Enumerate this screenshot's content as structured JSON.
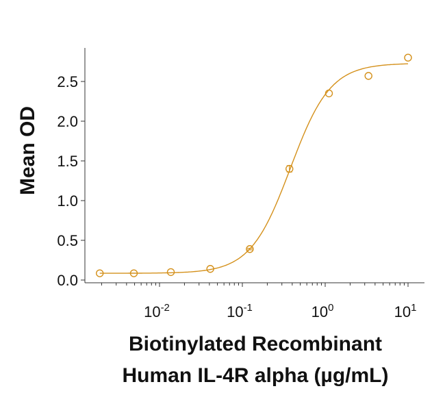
{
  "chart_data": {
    "type": "scatter",
    "xlabel": [
      "Biotinylated Recombinant",
      "Human IL-4R alpha (µg/mL)"
    ],
    "ylabel": "Mean OD",
    "x_scale": "log",
    "xlim": [
      0.0013,
      14
    ],
    "ylim": [
      -0.05,
      2.9
    ],
    "x_ticks": [
      {
        "value": 0.01,
        "base": "10",
        "exp": "-2"
      },
      {
        "value": 0.1,
        "base": "10",
        "exp": "-1"
      },
      {
        "value": 1,
        "base": "10",
        "exp": "0"
      },
      {
        "value": 10,
        "base": "10",
        "exp": "1"
      }
    ],
    "y_ticks": [
      "0.0",
      "0.5",
      "1.0",
      "1.5",
      "2.0",
      "2.5"
    ],
    "grid": false,
    "color": "#d4901a",
    "series": [
      {
        "x": [
          0.0019,
          0.0049,
          0.0137,
          0.041,
          0.123,
          0.37,
          1.11,
          3.33,
          10
        ],
        "y": [
          0.085,
          0.085,
          0.1,
          0.14,
          0.39,
          1.4,
          2.35,
          2.57,
          2.8
        ],
        "error": [
          0,
          0,
          0,
          0,
          0.01,
          0.04,
          0,
          0,
          0
        ],
        "marker": "open-circle",
        "fit": {
          "model": "4PL",
          "bottom": 0.085,
          "top": 2.73,
          "ec50": 0.38,
          "hill": 1.8
        }
      }
    ]
  }
}
